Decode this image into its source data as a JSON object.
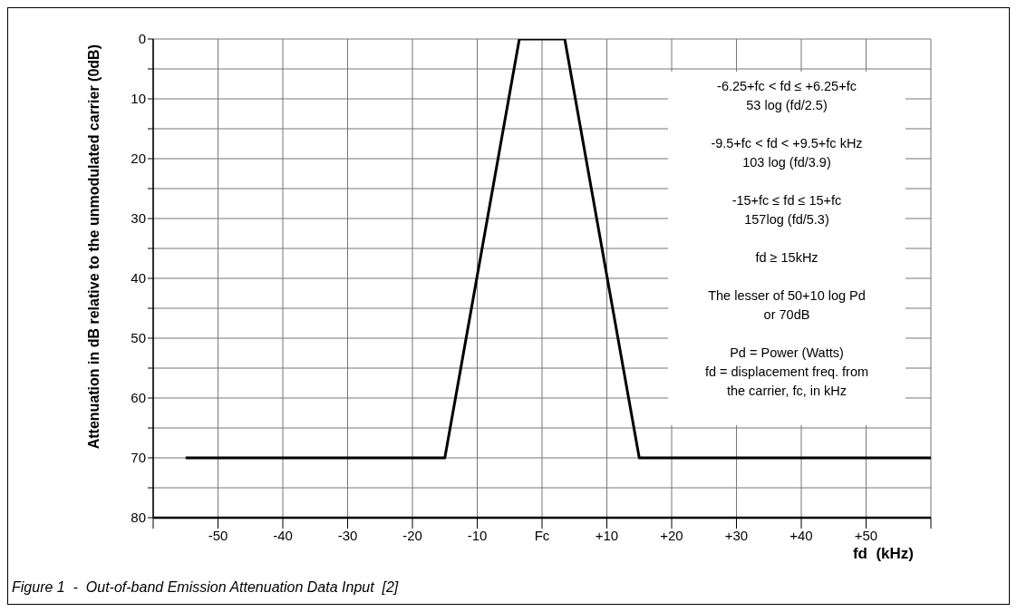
{
  "chart_data": {
    "type": "line",
    "xlabel": "fd  (kHz)",
    "ylabel": "Attenuation in dB relative to the unmodulated carrier (0dB)",
    "x": [
      -55,
      -15,
      -3.5,
      3.5,
      15,
      60
    ],
    "series": [
      {
        "color": "#000000",
        "values": [
          70,
          70,
          0,
          0,
          70,
          70
        ]
      }
    ],
    "xlim": [
      -60,
      60
    ],
    "xticks": [
      {
        "value": -60,
        "label": null
      },
      -50,
      -40,
      -30,
      -20,
      -10,
      {
        "value": 0,
        "label": "Fc"
      },
      {
        "value": 10,
        "label": "+10"
      },
      {
        "value": 20,
        "label": "+20"
      },
      {
        "value": 30,
        "label": "+30"
      },
      {
        "value": 40,
        "label": "+40"
      },
      {
        "value": 50,
        "label": "+50"
      },
      {
        "value": 60,
        "label": null
      }
    ],
    "ylim": [
      80,
      0
    ],
    "yticks": [
      0,
      {
        "value": 5,
        "label": null
      },
      10,
      {
        "value": 15,
        "label": null
      },
      20,
      {
        "value": 25,
        "label": null
      },
      30,
      {
        "value": 35,
        "label": null
      },
      40,
      {
        "value": 45,
        "label": null
      },
      50,
      {
        "value": 55,
        "label": null
      },
      60,
      {
        "value": 65,
        "label": null
      },
      70,
      {
        "value": 75,
        "label": null
      },
      80
    ],
    "grid": true,
    "marker": "none",
    "line_style": "solid",
    "annotations": [
      "-6.25+fc < fd ≤ +6.25+fc\n53 log (fd/2.5)",
      "-9.5+fc < fd < +9.5+fc kHz\n103 log (fd/3.9)",
      "-15+fc ≤ fd ≤ 15+fc\n157log (fd/5.3)",
      "fd ≥ 15kHz",
      "The lesser of 50+10 log Pd\nor 70dB",
      "Pd = Power (Watts)\nfd = displacement freq. from\nthe carrier, fc, in kHz",
      "Figure 1  -  Out-of-band Emission Attenuation Data Input  [2]"
    ]
  }
}
